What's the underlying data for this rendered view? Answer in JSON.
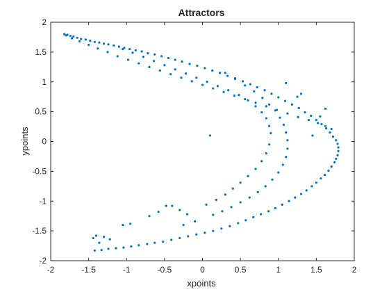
{
  "chart_data": {
    "type": "scatter",
    "title": "Attractors",
    "xlabel": "xpoints",
    "ylabel": "ypoints",
    "xlim": [
      -2,
      2
    ],
    "ylim": [
      -2,
      2
    ],
    "xticks": [
      -2,
      -1.5,
      -1,
      -0.5,
      0,
      0.5,
      1,
      1.5,
      2
    ],
    "yticks": [
      -2,
      -1.5,
      -1,
      -0.5,
      0,
      0.5,
      1,
      1.5,
      2
    ],
    "xtick_labels": [
      "-2",
      "-1.5",
      "-1",
      "-0.5",
      "0",
      "0.5",
      "1",
      "1.5",
      "2"
    ],
    "ytick_labels": [
      "-2",
      "-1.5",
      "-1",
      "-0.5",
      "0",
      "0.5",
      "1",
      "1.5",
      "2"
    ],
    "grid": false,
    "marker_color": "#0072BD",
    "series": [
      {
        "name": "points",
        "x": [
          -1.82,
          -1.78,
          -1.74,
          -1.7,
          -1.65,
          -1.6,
          -1.54,
          -1.48,
          -1.42,
          -1.36,
          -1.3,
          -1.24,
          -1.17,
          -1.1,
          -1.03,
          -0.96,
          -0.88,
          -0.8,
          -0.72,
          -0.63,
          -0.54,
          -0.45,
          -0.36,
          -0.27,
          -0.17,
          -0.07,
          0.03,
          0.13,
          0.23,
          0.33,
          0.43,
          0.53,
          0.63,
          0.72,
          0.82,
          0.91,
          1.0,
          1.09,
          1.18,
          1.27,
          1.35,
          1.43,
          1.5,
          1.57,
          1.63,
          1.68,
          1.72,
          1.76,
          1.78,
          1.79,
          1.79,
          1.78,
          1.76,
          1.74,
          1.7,
          1.66,
          1.61,
          1.56,
          1.5,
          1.44,
          1.37,
          1.3,
          1.22,
          1.14,
          1.05,
          0.96,
          0.87,
          0.77,
          0.67,
          0.57,
          0.47,
          0.36,
          0.25,
          0.14,
          0.03,
          -0.08,
          -0.19,
          -0.3,
          -0.41,
          -0.52,
          -0.63,
          -0.73,
          -0.84,
          -0.94,
          -1.04,
          -1.14,
          -1.24,
          -1.33,
          -1.42,
          -1.8,
          -1.72,
          -1.62,
          -1.5,
          -1.38,
          -1.25,
          -1.12,
          -0.98,
          -0.84,
          -0.7,
          -0.56,
          -0.42,
          -0.28,
          -0.14,
          0.0,
          0.14,
          0.28,
          0.42,
          0.56,
          0.7,
          0.84,
          0.98,
          1.12,
          1.26,
          1.4,
          1.52,
          1.62,
          1.7,
          -1.05,
          -0.92,
          -0.78,
          -0.64,
          -0.5,
          -0.36,
          -0.22,
          -0.08,
          0.06,
          0.2,
          0.34,
          0.48,
          0.6,
          0.7,
          0.78,
          0.84,
          0.88,
          0.9,
          0.88,
          0.84,
          0.78,
          0.7,
          0.6,
          0.5,
          0.4,
          0.3,
          0.18,
          0.05,
          -0.4,
          -0.3,
          -0.2,
          0.3,
          0.43,
          0.56,
          0.68,
          0.79,
          0.88,
          0.96,
          1.02,
          1.07,
          1.1,
          1.12,
          1.12,
          1.1,
          1.06,
          1.0,
          0.92,
          0.83,
          0.73,
          0.62,
          0.5,
          0.38,
          0.26,
          0.14,
          -0.1,
          -0.25,
          -1.05,
          -0.95,
          -1.22,
          -1.3,
          -1.4,
          -1.44,
          -1.36,
          0.1,
          1.45,
          -0.7,
          -0.48,
          -0.58,
          1.25,
          1.55,
          1.62,
          1.3,
          1.1
        ],
        "y": [
          1.8,
          1.79,
          1.77,
          1.76,
          1.74,
          1.72,
          1.71,
          1.69,
          1.67,
          1.66,
          1.64,
          1.63,
          1.61,
          1.59,
          1.57,
          1.55,
          1.53,
          1.51,
          1.48,
          1.46,
          1.43,
          1.4,
          1.37,
          1.34,
          1.3,
          1.27,
          1.23,
          1.19,
          1.15,
          1.1,
          1.06,
          1.01,
          0.96,
          0.91,
          0.86,
          0.8,
          0.74,
          0.68,
          0.62,
          0.56,
          0.49,
          0.43,
          0.36,
          0.29,
          0.22,
          0.15,
          0.08,
          0.02,
          -0.04,
          -0.1,
          -0.16,
          -0.23,
          -0.29,
          -0.35,
          -0.42,
          -0.49,
          -0.56,
          -0.62,
          -0.69,
          -0.75,
          -0.82,
          -0.88,
          -0.94,
          -1.0,
          -1.06,
          -1.12,
          -1.17,
          -1.22,
          -1.27,
          -1.32,
          -1.37,
          -1.42,
          -1.46,
          -1.5,
          -1.53,
          -1.56,
          -1.59,
          -1.62,
          -1.65,
          -1.68,
          -1.7,
          -1.72,
          -1.74,
          -1.76,
          -1.78,
          -1.79,
          -1.8,
          -1.82,
          -1.83,
          1.78,
          1.73,
          1.68,
          1.62,
          1.56,
          1.5,
          1.43,
          1.37,
          1.31,
          1.25,
          1.19,
          1.13,
          1.07,
          1.01,
          0.95,
          0.89,
          0.83,
          0.77,
          0.71,
          0.65,
          0.59,
          0.53,
          0.47,
          0.41,
          0.36,
          0.31,
          0.26,
          0.21,
          1.55,
          1.49,
          1.42,
          1.35,
          1.28,
          1.21,
          1.14,
          1.07,
          1.0,
          0.93,
          0.86,
          0.78,
          0.69,
          0.59,
          0.49,
          0.39,
          0.26,
          0.14,
          -0.05,
          -0.2,
          -0.33,
          -0.46,
          -0.58,
          -0.69,
          -0.79,
          -0.89,
          -0.98,
          -1.06,
          -1.08,
          -1.15,
          -1.22,
          1.15,
          1.05,
          0.94,
          0.84,
          0.73,
          0.62,
          0.52,
          0.4,
          0.28,
          0.15,
          0.02,
          -0.12,
          -0.26,
          -0.39,
          -0.52,
          -0.64,
          -0.75,
          -0.85,
          -0.94,
          -1.02,
          -1.1,
          -1.17,
          -1.23,
          -1.34,
          -1.4,
          -1.4,
          -1.38,
          -1.64,
          -1.6,
          -1.58,
          -1.62,
          -1.7,
          0.1,
          0.1,
          -1.25,
          -1.08,
          -1.18,
          0.75,
          0.42,
          0.55,
          0.8,
          0.98
        ]
      }
    ]
  }
}
